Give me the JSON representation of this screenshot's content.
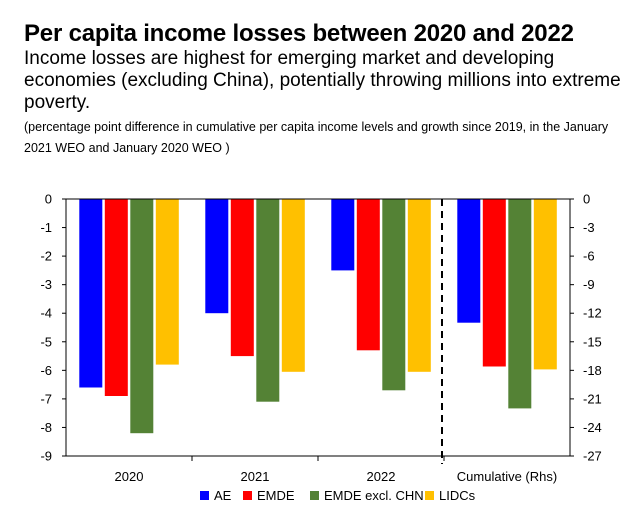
{
  "header": {
    "title": "Per capita income losses between 2020 and 2022",
    "subtitle": "Income losses are highest for emerging market and developing economies (excluding China), potentially throwing millions into extreme poverty.",
    "note": "(percentage point difference in cumulative per capita income levels and growth since 2019, in the January 2021 WEO and January 2020 WEO )"
  },
  "chart_data": {
    "type": "bar",
    "categories": [
      "2020",
      "2021",
      "2022",
      "Cumulative (Rhs)"
    ],
    "series": [
      {
        "name": "AE",
        "color": "#0000ff",
        "values": [
          -6.6,
          -4.0,
          -2.5,
          -13.0
        ]
      },
      {
        "name": "EMDE",
        "color": "#ff0000",
        "values": [
          -6.9,
          -5.5,
          -5.3,
          -17.6
        ]
      },
      {
        "name": "EMDE excl. CHN",
        "color": "#548235",
        "values": [
          -8.2,
          -7.1,
          -6.7,
          -22.0
        ]
      },
      {
        "name": "LIDCs",
        "color": "#ffc000",
        "values": [
          -5.8,
          -6.05,
          -6.05,
          -17.9
        ]
      }
    ],
    "left_axis": {
      "ylim": [
        -9,
        0
      ],
      "ticks": [
        "0",
        "-1",
        "-2",
        "-3",
        "-4",
        "-5",
        "-6",
        "-7",
        "-8",
        "-9"
      ]
    },
    "right_axis": {
      "ylim": [
        -27,
        0
      ],
      "ticks": [
        "0",
        "-3",
        "-6",
        "-9",
        "-12",
        "-15",
        "-18",
        "-21",
        "-24",
        "-27"
      ],
      "applies_to": "Cumulative (Rhs)"
    },
    "legend_position": "bottom",
    "grid": false,
    "separator": "dashed line before Cumulative (Rhs)"
  }
}
